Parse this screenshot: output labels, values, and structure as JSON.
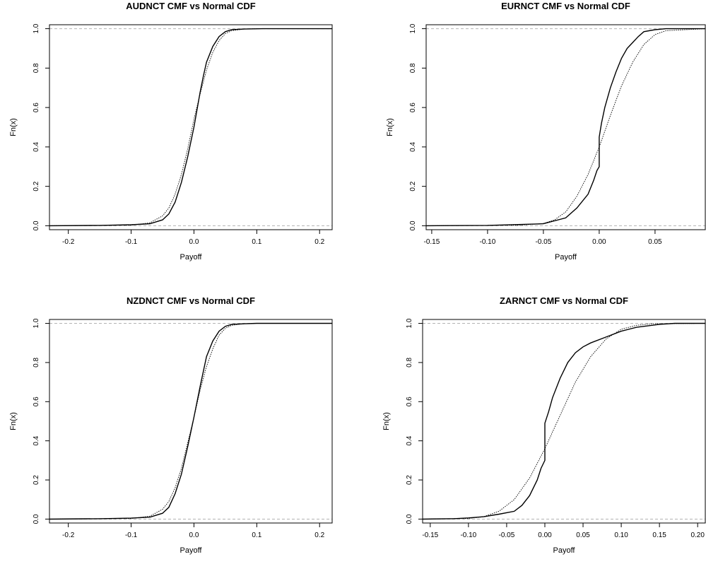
{
  "chart_data": [
    {
      "type": "line",
      "title": "AUDNCT CMF vs Normal CDF",
      "xlabel": "Payoff",
      "ylabel": "Fn(x)",
      "xlim": [
        -0.23,
        0.22
      ],
      "ylim": [
        -0.02,
        1.02
      ],
      "xticks": [
        -0.2,
        -0.1,
        0.0,
        0.1,
        0.2
      ],
      "xtick_labels": [
        "-0.2",
        "-0.1",
        "0.0",
        "0.1",
        "0.2"
      ],
      "yticks": [
        0.0,
        0.2,
        0.4,
        0.6,
        0.8,
        1.0
      ],
      "ytick_labels": [
        "0.0",
        "0.2",
        "0.4",
        "0.6",
        "0.8",
        "1.0"
      ],
      "reference_lines_y": [
        0,
        1
      ],
      "series": [
        {
          "style": "solid",
          "x": [
            -0.23,
            -0.15,
            -0.1,
            -0.07,
            -0.05,
            -0.04,
            -0.03,
            -0.02,
            -0.01,
            0.0,
            0.01,
            0.015,
            0.02,
            0.03,
            0.04,
            0.05,
            0.06,
            0.08,
            0.11,
            0.22
          ],
          "y": [
            0,
            0.002,
            0.005,
            0.01,
            0.03,
            0.06,
            0.12,
            0.22,
            0.35,
            0.5,
            0.68,
            0.76,
            0.83,
            0.91,
            0.96,
            0.985,
            0.995,
            0.998,
            1,
            1
          ]
        },
        {
          "style": "dotted",
          "x": [
            -0.23,
            -0.1,
            -0.07,
            -0.05,
            -0.04,
            -0.03,
            -0.02,
            -0.01,
            0.0,
            0.01,
            0.02,
            0.03,
            0.04,
            0.05,
            0.06,
            0.08,
            0.1,
            0.22
          ],
          "y": [
            0,
            0.003,
            0.015,
            0.05,
            0.09,
            0.16,
            0.26,
            0.39,
            0.54,
            0.67,
            0.79,
            0.88,
            0.94,
            0.975,
            0.99,
            0.998,
            1,
            1
          ]
        }
      ]
    },
    {
      "type": "line",
      "title": "EURNCT CMF vs Normal CDF",
      "xlabel": "Payoff",
      "ylabel": "Fn(x)",
      "xlim": [
        -0.155,
        0.095
      ],
      "ylim": [
        -0.02,
        1.02
      ],
      "xticks": [
        -0.15,
        -0.1,
        -0.05,
        0.0,
        0.05
      ],
      "xtick_labels": [
        "-0.15",
        "-0.10",
        "-0.05",
        "0.00",
        "0.05"
      ],
      "yticks": [
        0.0,
        0.2,
        0.4,
        0.6,
        0.8,
        1.0
      ],
      "ytick_labels": [
        "0.0",
        "0.2",
        "0.4",
        "0.6",
        "0.8",
        "1.0"
      ],
      "reference_lines_y": [
        0,
        1
      ],
      "series": [
        {
          "style": "solid",
          "x": [
            -0.155,
            -0.1,
            -0.05,
            -0.03,
            -0.02,
            -0.01,
            -0.005,
            -0.002,
            0.0,
            0.0,
            0.002,
            0.005,
            0.01,
            0.015,
            0.02,
            0.025,
            0.03,
            0.035,
            0.04,
            0.05,
            0.06,
            0.095
          ],
          "y": [
            0,
            0.002,
            0.01,
            0.04,
            0.09,
            0.16,
            0.23,
            0.28,
            0.3,
            0.45,
            0.52,
            0.6,
            0.7,
            0.78,
            0.85,
            0.9,
            0.93,
            0.96,
            0.985,
            0.995,
            1,
            1
          ]
        },
        {
          "style": "dotted",
          "x": [
            -0.155,
            -0.07,
            -0.05,
            -0.04,
            -0.03,
            -0.02,
            -0.01,
            0.0,
            0.01,
            0.02,
            0.03,
            0.04,
            0.05,
            0.06,
            0.095
          ],
          "y": [
            0,
            0.003,
            0.012,
            0.03,
            0.07,
            0.15,
            0.26,
            0.4,
            0.56,
            0.71,
            0.83,
            0.92,
            0.97,
            0.99,
            1
          ]
        }
      ]
    },
    {
      "type": "line",
      "title": "NZDNCT CMF vs Normal CDF",
      "xlabel": "Payoff",
      "ylabel": "Fn(x)",
      "xlim": [
        -0.23,
        0.22
      ],
      "ylim": [
        -0.02,
        1.02
      ],
      "xticks": [
        -0.2,
        -0.1,
        0.0,
        0.1,
        0.2
      ],
      "xtick_labels": [
        "-0.2",
        "-0.1",
        "0.0",
        "0.1",
        "0.2"
      ],
      "yticks": [
        0.0,
        0.2,
        0.4,
        0.6,
        0.8,
        1.0
      ],
      "ytick_labels": [
        "0.0",
        "0.2",
        "0.4",
        "0.6",
        "0.8",
        "1.0"
      ],
      "reference_lines_y": [
        0,
        1
      ],
      "series": [
        {
          "style": "solid",
          "x": [
            -0.23,
            -0.15,
            -0.1,
            -0.07,
            -0.05,
            -0.04,
            -0.03,
            -0.02,
            -0.01,
            0.0,
            0.01,
            0.02,
            0.03,
            0.04,
            0.05,
            0.06,
            0.08,
            0.1,
            0.22
          ],
          "y": [
            0,
            0.002,
            0.005,
            0.01,
            0.03,
            0.06,
            0.13,
            0.23,
            0.37,
            0.52,
            0.68,
            0.83,
            0.91,
            0.96,
            0.985,
            0.995,
            0.998,
            1,
            1
          ]
        },
        {
          "style": "dotted",
          "x": [
            -0.23,
            -0.1,
            -0.07,
            -0.05,
            -0.04,
            -0.03,
            -0.02,
            -0.01,
            0.0,
            0.01,
            0.02,
            0.03,
            0.04,
            0.05,
            0.06,
            0.08,
            0.1,
            0.22
          ],
          "y": [
            0,
            0.003,
            0.015,
            0.05,
            0.09,
            0.16,
            0.26,
            0.39,
            0.52,
            0.66,
            0.78,
            0.87,
            0.94,
            0.975,
            0.99,
            0.998,
            1,
            1
          ]
        }
      ]
    },
    {
      "type": "line",
      "title": "ZARNCT CMF vs Normal CDF",
      "xlabel": "Payoff",
      "ylabel": "Fn(x)",
      "xlim": [
        -0.16,
        0.21
      ],
      "ylim": [
        -0.02,
        1.02
      ],
      "xticks": [
        -0.15,
        -0.1,
        -0.05,
        0.0,
        0.05,
        0.1,
        0.15,
        0.2
      ],
      "xtick_labels": [
        "-0.15",
        "-0.10",
        "-0.05",
        "0.00",
        "0.05",
        "0.10",
        "0.15",
        "0.20"
      ],
      "yticks": [
        0.0,
        0.2,
        0.4,
        0.6,
        0.8,
        1.0
      ],
      "ytick_labels": [
        "0.0",
        "0.2",
        "0.4",
        "0.6",
        "0.8",
        "1.0"
      ],
      "reference_lines_y": [
        0,
        1
      ],
      "series": [
        {
          "style": "solid",
          "x": [
            -0.16,
            -0.12,
            -0.1,
            -0.08,
            -0.06,
            -0.04,
            -0.03,
            -0.02,
            -0.01,
            -0.005,
            0.0,
            0.0,
            0.005,
            0.01,
            0.02,
            0.03,
            0.04,
            0.05,
            0.06,
            0.08,
            0.1,
            0.12,
            0.15,
            0.17,
            0.21
          ],
          "y": [
            0,
            0.002,
            0.006,
            0.012,
            0.025,
            0.04,
            0.07,
            0.12,
            0.2,
            0.26,
            0.3,
            0.49,
            0.55,
            0.62,
            0.72,
            0.8,
            0.85,
            0.88,
            0.9,
            0.93,
            0.96,
            0.98,
            0.995,
            1,
            1
          ]
        },
        {
          "style": "dotted",
          "x": [
            -0.16,
            -0.1,
            -0.08,
            -0.06,
            -0.04,
            -0.02,
            0.0,
            0.02,
            0.04,
            0.06,
            0.08,
            0.1,
            0.12,
            0.14,
            0.21
          ],
          "y": [
            0,
            0.003,
            0.012,
            0.04,
            0.1,
            0.21,
            0.36,
            0.53,
            0.7,
            0.83,
            0.92,
            0.97,
            0.99,
            0.998,
            1
          ]
        }
      ]
    }
  ]
}
